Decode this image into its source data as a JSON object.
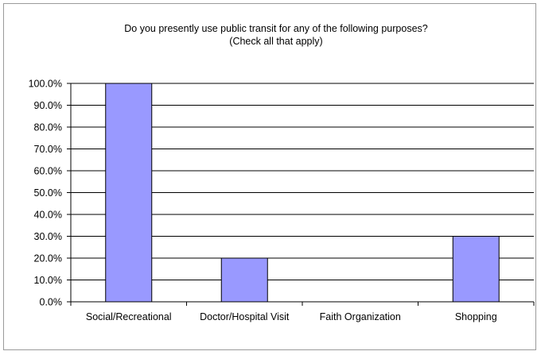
{
  "chart_data": {
    "type": "bar",
    "title": "Do you presently use public transit for any of the following purposes?",
    "subtitle": "(Check all that apply)",
    "categories": [
      "Social/Recreational",
      "Doctor/Hospital Visit",
      "Faith Organization",
      "Shopping"
    ],
    "values": [
      100.0,
      20.0,
      0.0,
      30.0
    ],
    "ylim": [
      0,
      100
    ],
    "y_ticks": [
      "0.0%",
      "10.0%",
      "20.0%",
      "30.0%",
      "40.0%",
      "50.0%",
      "60.0%",
      "70.0%",
      "80.0%",
      "90.0%",
      "100.0%"
    ],
    "xlabel": "",
    "ylabel": "",
    "grid": true,
    "bar_color": "#9999ff",
    "bar_outline": "#000000",
    "gridline_color": "#000000"
  }
}
